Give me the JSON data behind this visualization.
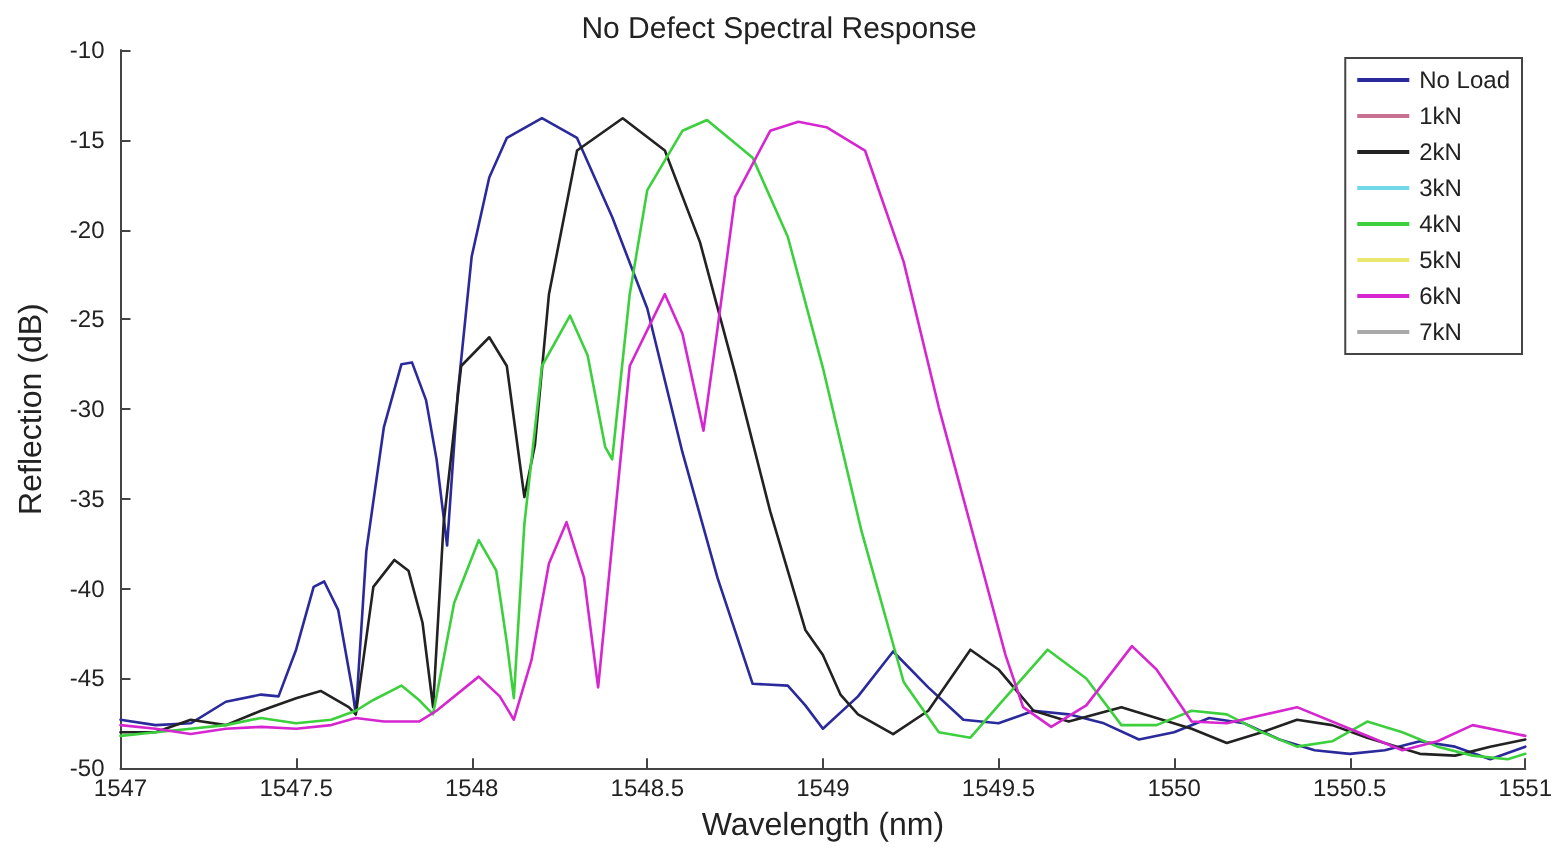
{
  "chart_data": {
    "type": "line",
    "title": "No Defect Spectral Response",
    "xlabel": "Wavelength (nm)",
    "ylabel": "Reflection (dB)",
    "xlim": [
      1547,
      1551
    ],
    "xticks": [
      1547,
      1547.5,
      1548,
      1548.5,
      1549,
      1549.5,
      1550,
      1550.5,
      1551
    ],
    "ylim": [
      -50,
      -10
    ],
    "yticks": [
      -50,
      -45,
      -40,
      -35,
      -30,
      -25,
      -20,
      -15,
      -10
    ],
    "grid": false,
    "legend": "top right",
    "marker": "none",
    "line_style": "solid",
    "series": [
      {
        "name": "No Load",
        "color": "#2a2a9c",
        "x": [
          1547,
          1547.1,
          1547.2,
          1547.3,
          1547.4,
          1547.45,
          1547.5,
          1547.55,
          1547.58,
          1547.62,
          1547.66,
          1547.67,
          1547.7,
          1547.75,
          1547.8,
          1547.83,
          1547.87,
          1547.9,
          1547.93,
          1547.96,
          1548,
          1548.05,
          1548.1,
          1548.2,
          1548.3,
          1548.4,
          1548.5,
          1548.6,
          1548.7,
          1548.8,
          1548.9,
          1548.95,
          1549,
          1549.1,
          1549.2,
          1549.3,
          1549.4,
          1549.5,
          1549.6,
          1549.7,
          1549.8,
          1549.9,
          1550,
          1550.1,
          1550.2,
          1550.3,
          1550.4,
          1550.5,
          1550.6,
          1550.7,
          1550.8,
          1550.9,
          1551
        ],
        "values": [
          -47.3,
          -47.6,
          -47.5,
          -46.3,
          -45.9,
          -46.0,
          -43.4,
          -39.9,
          -39.6,
          -41.2,
          -45.6,
          -47.0,
          -37.9,
          -31.0,
          -27.5,
          -27.4,
          -29.5,
          -32.8,
          -37.6,
          -29.2,
          -21.5,
          -17.1,
          -14.9,
          -13.8,
          -14.9,
          -19.3,
          -24.4,
          -32.4,
          -39.4,
          -45.3,
          -45.4,
          -46.5,
          -47.8,
          -46.0,
          -43.5,
          -45.5,
          -47.3,
          -47.5,
          -46.8,
          -47.0,
          -47.5,
          -48.4,
          -48.0,
          -47.2,
          -47.5,
          -48.4,
          -49.0,
          -49.2,
          -49.0,
          -48.5,
          -48.8,
          -49.5,
          -48.8
        ]
      },
      {
        "name": "1kN",
        "color": "#c87090"
      },
      {
        "name": "2kN",
        "color": "#222222",
        "x": [
          1547,
          1547.1,
          1547.2,
          1547.3,
          1547.4,
          1547.5,
          1547.57,
          1547.65,
          1547.67,
          1547.72,
          1547.78,
          1547.82,
          1547.86,
          1547.89,
          1547.92,
          1547.97,
          1548.05,
          1548.1,
          1548.15,
          1548.18,
          1548.22,
          1548.3,
          1548.43,
          1548.55,
          1548.65,
          1548.75,
          1548.85,
          1548.95,
          1549,
          1549.05,
          1549.1,
          1549.2,
          1549.3,
          1549.42,
          1549.5,
          1549.6,
          1549.7,
          1549.85,
          1549.95,
          1550.05,
          1550.15,
          1550.25,
          1550.35,
          1550.45,
          1550.55,
          1550.7,
          1550.8,
          1550.9,
          1551
        ],
        "values": [
          -48.0,
          -48.0,
          -47.3,
          -47.6,
          -46.8,
          -46.1,
          -45.7,
          -46.6,
          -47.0,
          -39.9,
          -38.4,
          -39.0,
          -41.9,
          -46.6,
          -36.4,
          -27.6,
          -26.0,
          -27.6,
          -34.9,
          -32.0,
          -23.6,
          -15.6,
          -13.8,
          -15.6,
          -20.7,
          -28.0,
          -35.7,
          -42.3,
          -43.7,
          -45.9,
          -47.0,
          -48.1,
          -46.8,
          -43.4,
          -44.5,
          -46.8,
          -47.4,
          -46.6,
          -47.2,
          -47.8,
          -48.6,
          -48.0,
          -47.3,
          -47.6,
          -48.3,
          -49.2,
          -49.3,
          -48.8,
          -48.4
        ]
      },
      {
        "name": "3kN",
        "color": "#70d8e8"
      },
      {
        "name": "4kN",
        "color": "#3cd03c",
        "x": [
          1547,
          1547.1,
          1547.2,
          1547.3,
          1547.4,
          1547.5,
          1547.6,
          1547.67,
          1547.72,
          1547.8,
          1547.85,
          1547.89,
          1547.95,
          1548.02,
          1548.07,
          1548.1,
          1548.12,
          1548.15,
          1548.2,
          1548.28,
          1548.33,
          1548.38,
          1548.4,
          1548.45,
          1548.5,
          1548.6,
          1548.67,
          1548.8,
          1548.9,
          1549,
          1549.11,
          1549.23,
          1549.33,
          1549.42,
          1549.5,
          1549.64,
          1549.75,
          1549.85,
          1549.95,
          1550.05,
          1550.15,
          1550.25,
          1550.35,
          1550.45,
          1550.55,
          1550.65,
          1550.75,
          1550.85,
          1550.95,
          1551
        ],
        "values": [
          -48.2,
          -48.0,
          -47.8,
          -47.6,
          -47.2,
          -47.5,
          -47.3,
          -46.8,
          -46.2,
          -45.4,
          -46.2,
          -47.0,
          -40.8,
          -37.3,
          -39.0,
          -43.0,
          -46.1,
          -36.4,
          -27.6,
          -24.8,
          -27.0,
          -32.1,
          -32.8,
          -23.6,
          -17.8,
          -14.5,
          -13.9,
          -16.0,
          -20.4,
          -27.7,
          -36.8,
          -45.2,
          -48.0,
          -48.3,
          -46.5,
          -43.4,
          -45.0,
          -47.6,
          -47.6,
          -46.8,
          -47.0,
          -48.0,
          -48.8,
          -48.5,
          -47.4,
          -48.0,
          -48.8,
          -49.3,
          -49.5,
          -49.2
        ]
      },
      {
        "name": "5kN",
        "color": "#e8e870"
      },
      {
        "name": "6kN",
        "color": "#d626d0",
        "x": [
          1547,
          1547.1,
          1547.2,
          1547.3,
          1547.4,
          1547.5,
          1547.6,
          1547.67,
          1547.75,
          1547.85,
          1547.9,
          1548.02,
          1548.08,
          1548.12,
          1548.17,
          1548.22,
          1548.27,
          1548.32,
          1548.36,
          1548.4,
          1548.45,
          1548.55,
          1548.6,
          1548.66,
          1548.7,
          1548.75,
          1548.85,
          1548.93,
          1549.01,
          1549.12,
          1549.23,
          1549.33,
          1549.45,
          1549.52,
          1549.57,
          1549.65,
          1549.75,
          1549.88,
          1549.95,
          1550.05,
          1550.15,
          1550.35,
          1550.5,
          1550.65,
          1550.75,
          1550.85,
          1550.95,
          1551
        ],
        "values": [
          -47.6,
          -47.8,
          -48.1,
          -47.8,
          -47.7,
          -47.8,
          -47.6,
          -47.2,
          -47.4,
          -47.4,
          -46.8,
          -44.9,
          -46.0,
          -47.3,
          -44.0,
          -38.6,
          -36.3,
          -39.4,
          -45.5,
          -37.5,
          -27.6,
          -23.6,
          -25.8,
          -31.2,
          -25.5,
          -18.2,
          -14.5,
          -14.0,
          -14.3,
          -15.6,
          -21.8,
          -29.9,
          -38.6,
          -43.7,
          -46.6,
          -47.7,
          -46.5,
          -43.2,
          -44.5,
          -47.4,
          -47.5,
          -46.6,
          -47.8,
          -49.0,
          -48.5,
          -47.6,
          -48.0,
          -48.2
        ]
      },
      {
        "name": "7kN",
        "color": "#a8a8a8"
      }
    ]
  }
}
